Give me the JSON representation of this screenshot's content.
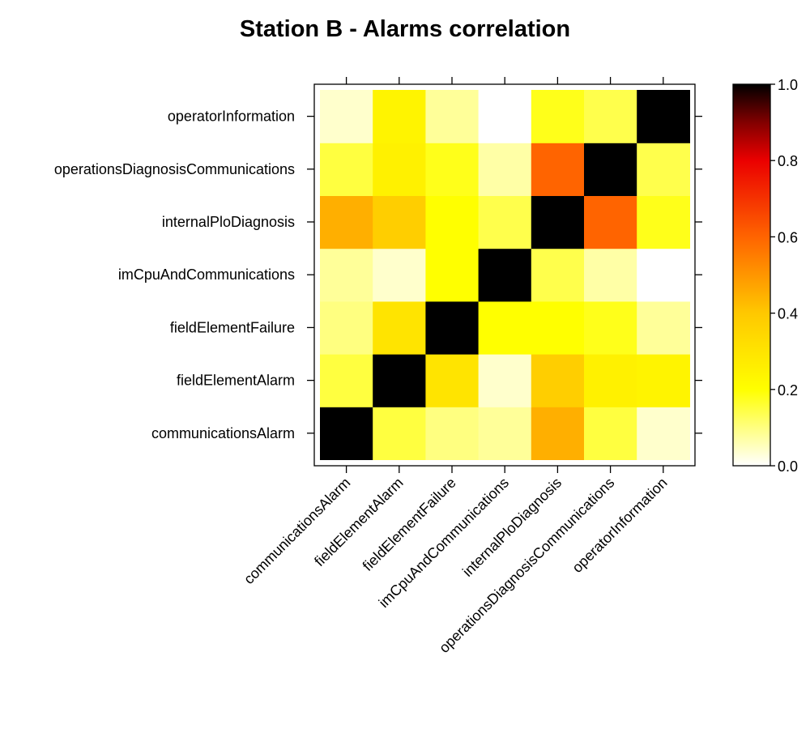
{
  "chart_data": {
    "type": "heatmap",
    "title": "Station B - Alarms correlation",
    "xlabel": "",
    "ylabel": "",
    "x_categories": [
      "communicationsAlarm",
      "fieldElementAlarm",
      "fieldElementFailure",
      "imCpuAndCommunications",
      "internalPloDiagnosis",
      "operationsDiagnosisCommunications",
      "operatorInformation"
    ],
    "y_categories": [
      "communicationsAlarm",
      "fieldElementAlarm",
      "fieldElementFailure",
      "imCpuAndCommunications",
      "internalPloDiagnosis",
      "operationsDiagnosisCommunications",
      "operatorInformation"
    ],
    "values": [
      [
        1.0,
        0.15,
        0.1,
        0.08,
        0.45,
        0.15,
        0.04
      ],
      [
        0.15,
        1.0,
        0.3,
        0.04,
        0.38,
        0.25,
        0.24
      ],
      [
        0.1,
        0.3,
        1.0,
        0.2,
        0.2,
        0.18,
        0.08
      ],
      [
        0.08,
        0.04,
        0.2,
        1.0,
        0.14,
        0.07,
        0.0
      ],
      [
        0.45,
        0.38,
        0.2,
        0.14,
        1.0,
        0.6,
        0.18
      ],
      [
        0.15,
        0.25,
        0.18,
        0.07,
        0.6,
        1.0,
        0.14
      ],
      [
        0.04,
        0.24,
        0.08,
        0.0,
        0.18,
        0.14,
        1.0
      ]
    ],
    "colorbar": {
      "range": [
        0.0,
        1.0
      ],
      "ticks": [
        0.0,
        0.2,
        0.4,
        0.6,
        0.8,
        1.0
      ],
      "tick_labels": [
        "0.0",
        "0.2",
        "0.4",
        "0.6",
        "0.8",
        "1.0"
      ],
      "palette": "heat"
    }
  }
}
